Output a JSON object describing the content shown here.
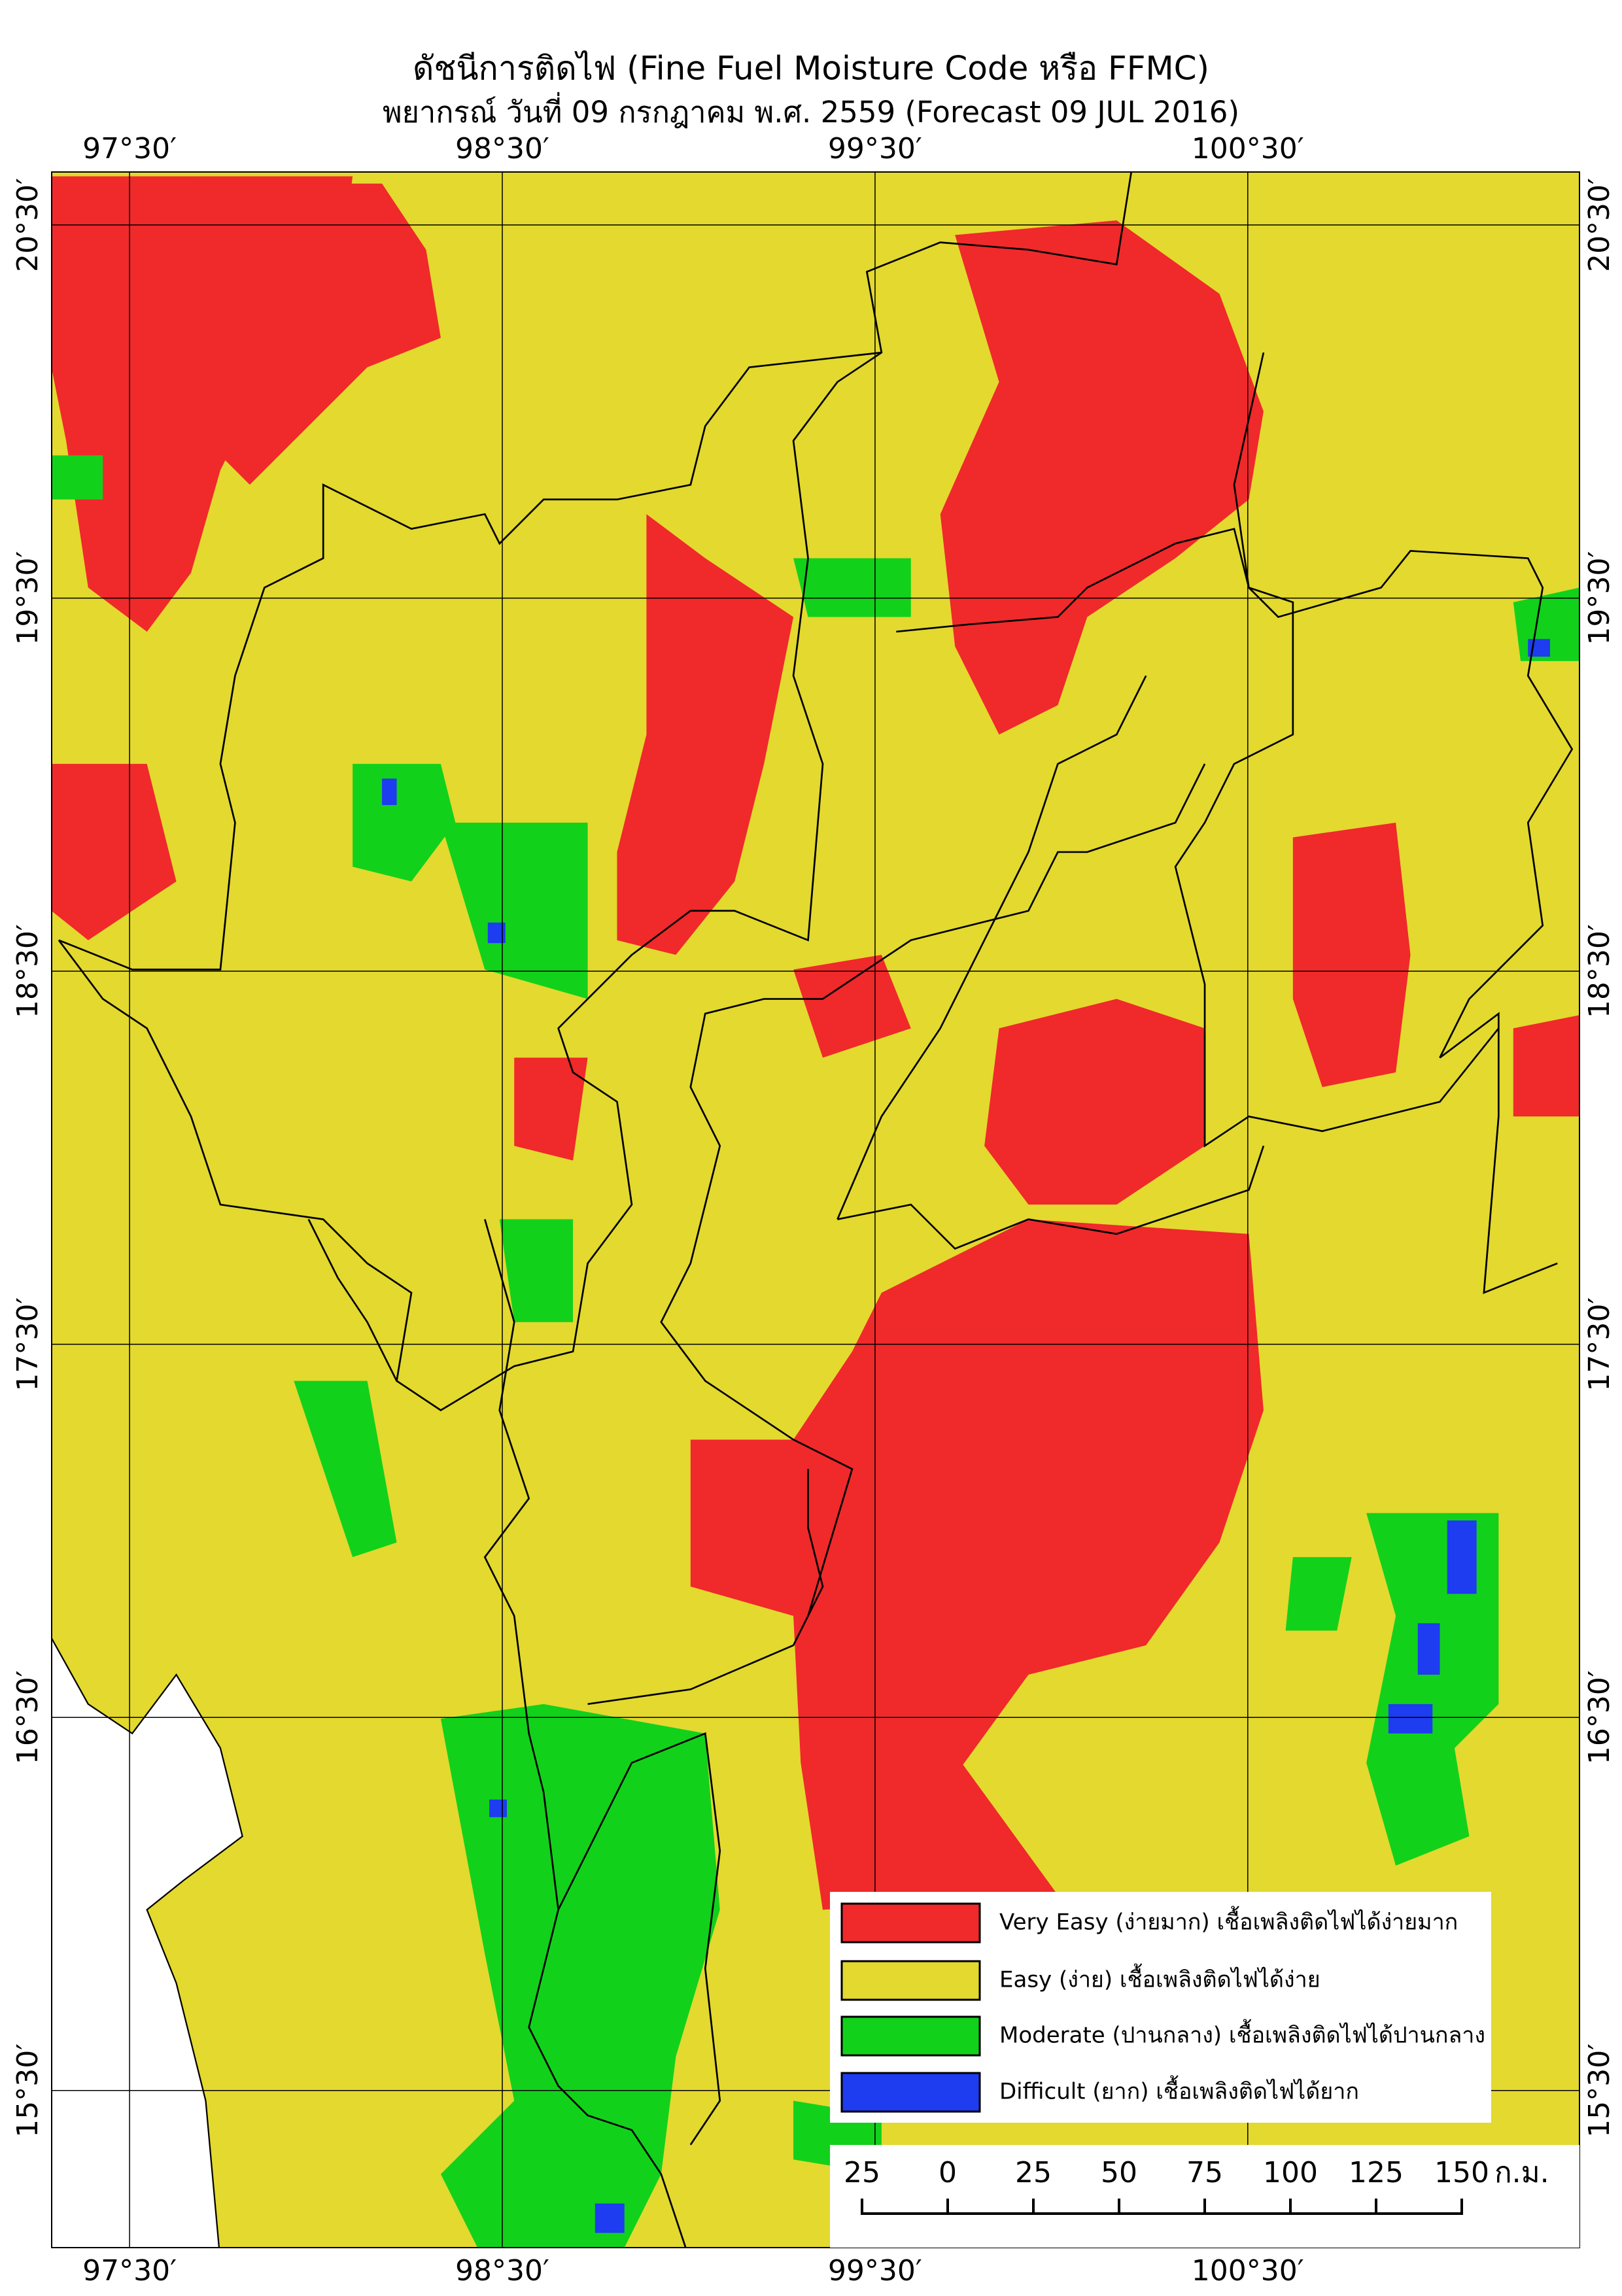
{
  "title": "ดัชนีการติดไฟ (Fine Fuel Moisture Code หรือ FFMC)",
  "subtitle": "พยากรณ์ วันที่ 09 กรกฎาคม พ.ศ. 2559 (Forecast 09 JUL 2016)",
  "map": {
    "type": "map",
    "lonlim": [
      97.291,
      101.39
    ],
    "latlim": [
      15.079,
      20.642
    ],
    "lon_ticks": [
      {
        "value": 97.5,
        "label": "97°30′"
      },
      {
        "value": 98.5,
        "label": "98°30′"
      },
      {
        "value": 99.5,
        "label": "99°30′"
      },
      {
        "value": 100.5,
        "label": "100°30′"
      }
    ],
    "lat_ticks": [
      {
        "value": 20.5,
        "label": "20°30′"
      },
      {
        "value": 19.5,
        "label": "19°30′"
      },
      {
        "value": 18.5,
        "label": "18°30′"
      },
      {
        "value": 17.5,
        "label": "17°30′"
      },
      {
        "value": 16.5,
        "label": "16°30′"
      },
      {
        "value": 15.5,
        "label": "15°30′"
      }
    ],
    "grid": true
  },
  "legend": [
    {
      "label": "Very Easy (ง่ายมาก) เชื้อเพลิงติดไฟได้ง่ายมาก",
      "color": "#f0292b"
    },
    {
      "label": "Easy (ง่าย) เชื้อเพลิงติดไฟได้ง่าย",
      "color": "#e3d92f"
    },
    {
      "label": "Moderate (ปานกลาง) เชื้อเพลิงติดไฟได้ปานกลาง",
      "color": "#12d11b"
    },
    {
      "label": "Difficult (ยาก) เชื้อเพลิงติดไฟได้ยาก",
      "color": "#1e3cf0"
    }
  ],
  "scale_bar": {
    "ticks": [
      {
        "value": -25,
        "label": "25"
      },
      0,
      25,
      50,
      75,
      100,
      125,
      150
    ],
    "unit": "ก.ม."
  }
}
